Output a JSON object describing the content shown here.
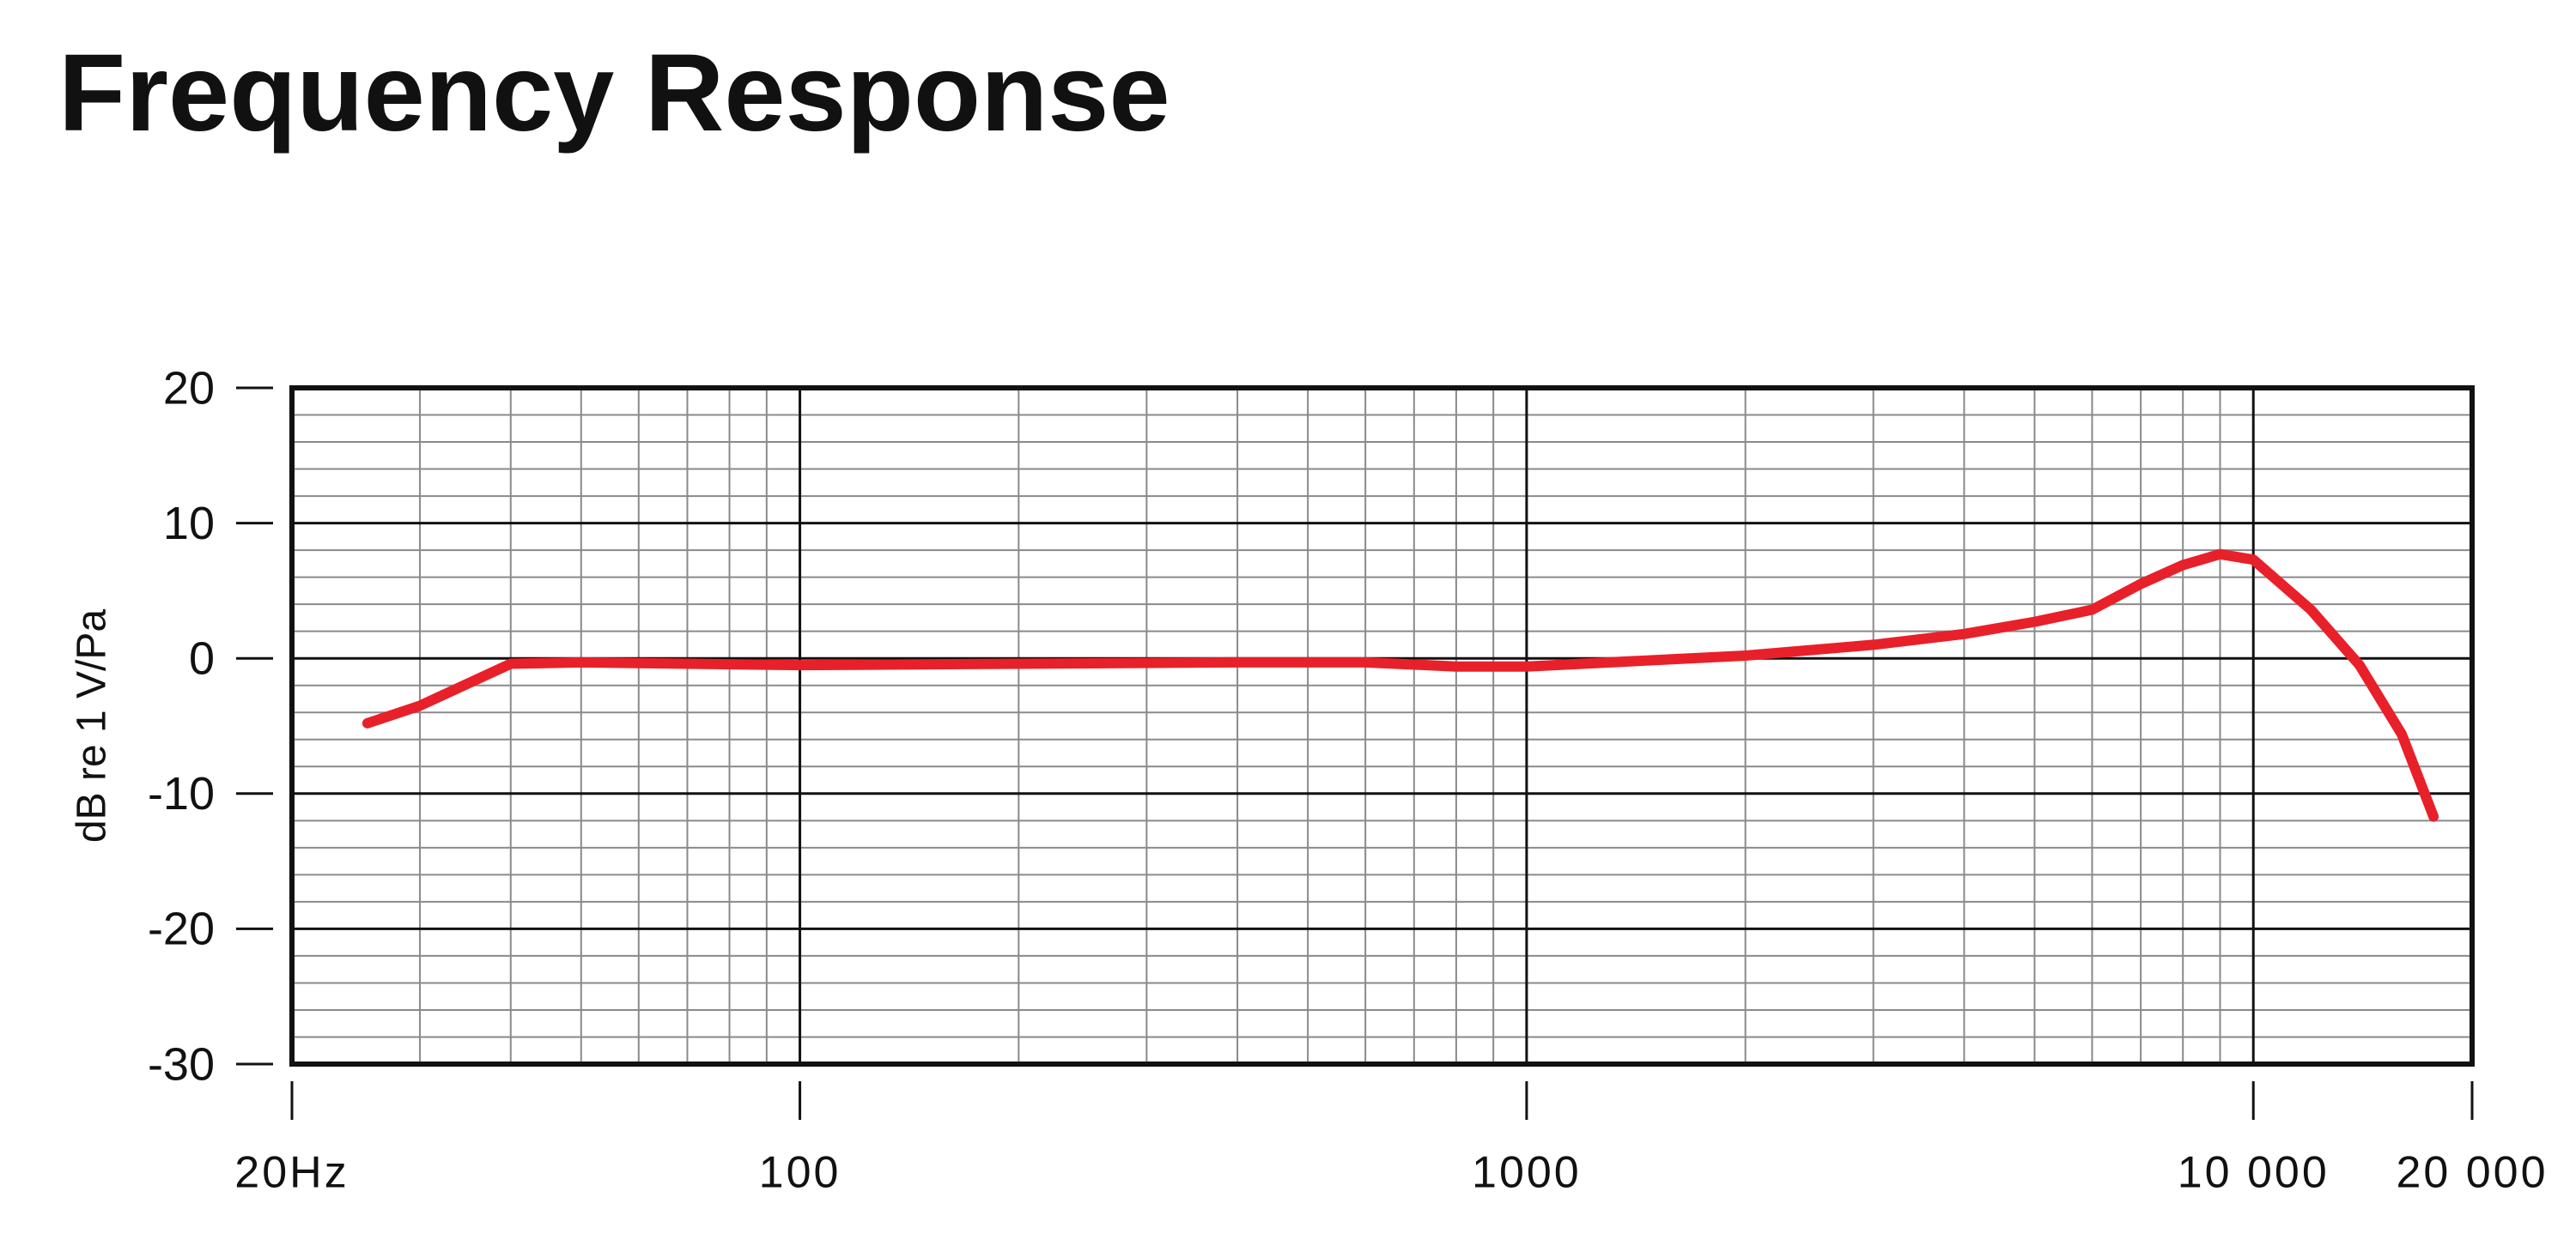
{
  "chart_data": {
    "type": "line",
    "title": "Frequency Response",
    "y_label": "dB re 1 V/Pa",
    "x": [
      25.4,
      30,
      40,
      50,
      100,
      200,
      400,
      600,
      800,
      1000,
      2000,
      3000,
      4000,
      5000,
      6000,
      7000,
      8000,
      9000,
      10000,
      12000,
      14000,
      16000,
      17700
    ],
    "series": [
      {
        "name": "Frequency Response",
        "color": "#e8202a",
        "values": [
          -4.8,
          -3.5,
          -0.4,
          -0.3,
          -0.5,
          -0.4,
          -0.3,
          -0.3,
          -0.6,
          -0.6,
          0.2,
          1.0,
          1.8,
          2.7,
          3.6,
          5.5,
          6.9,
          7.7,
          7.3,
          3.6,
          -0.5,
          -5.6,
          -11.7
        ]
      }
    ],
    "xlim": [
      20,
      20000
    ],
    "log_x": true,
    "xticks": [
      {
        "value": 20,
        "label": "20Hz"
      },
      100,
      1000,
      {
        "value": 10000,
        "label": "10 000"
      },
      {
        "value": 20000,
        "label": "20 000"
      }
    ],
    "ylim": [
      -30,
      20
    ],
    "yticks": [
      -30,
      -20,
      -10,
      0,
      10,
      20
    ],
    "grid": true
  }
}
